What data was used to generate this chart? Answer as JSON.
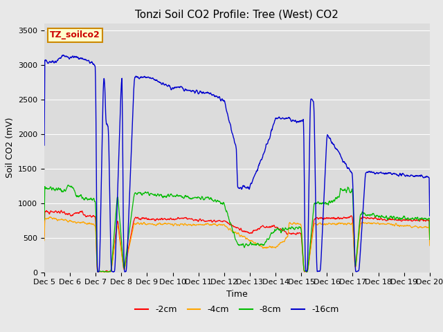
{
  "title": "Tonzi Soil CO2 Profile: Tree (West) CO2",
  "ylabel": "Soil CO2 (mV)",
  "xlabel": "Time",
  "legend_label": "TZ_soilco2",
  "series_labels": [
    "-2cm",
    "-4cm",
    "-8cm",
    "-16cm"
  ],
  "series_colors": [
    "#ff0000",
    "#ffa500",
    "#00bb00",
    "#0000cc"
  ],
  "ylim": [
    0,
    3600
  ],
  "yticks": [
    0,
    500,
    1000,
    1500,
    2000,
    2500,
    3000,
    3500
  ],
  "xtick_labels": [
    "Dec 5",
    "Dec 6",
    "Dec 7",
    "Dec 8",
    "Dec 9",
    "Dec 10",
    "Dec 11",
    "Dec 12",
    "Dec 13",
    "Dec 14",
    "Dec 15",
    "Dec 16",
    "Dec 17",
    "Dec 18",
    "Dec 19",
    "Dec 20"
  ],
  "background_color": "#e8e8e8",
  "plot_bg_color": "#dcdcdc",
  "title_fontsize": 11,
  "axis_fontsize": 9,
  "tick_fontsize": 8,
  "legend_fontsize": 9
}
